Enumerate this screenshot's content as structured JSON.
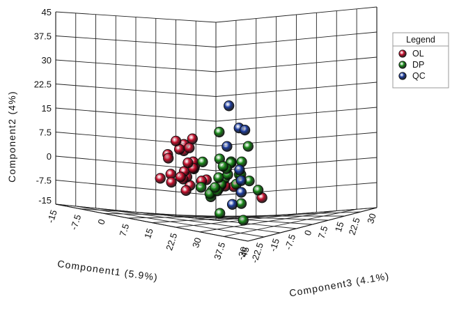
{
  "chart_data": {
    "type": "scatter",
    "projection": "3d",
    "grid": true,
    "legend_placement": "right",
    "legend": {
      "title": "Legend",
      "entries": [
        {
          "name": "OL",
          "color": "#c8102e"
        },
        {
          "name": "DP",
          "color": "#1a8a1a"
        },
        {
          "name": "QC",
          "color": "#1f3fa0"
        }
      ]
    },
    "axes": {
      "component1": {
        "label": "Component1 (5.9%)",
        "ticks": [
          "-15",
          "-7.5",
          "0",
          "7.5",
          "15",
          "22.5",
          "30",
          "37.5",
          "45"
        ],
        "range": [
          -15,
          45
        ]
      },
      "component2": {
        "label": "Component2 (4%)",
        "ticks": [
          "-15",
          "-7.5",
          "0",
          "7.5",
          "15",
          "22.5",
          "30",
          "37.5",
          "45"
        ],
        "range": [
          -15,
          45
        ]
      },
      "component3": {
        "label": "Component3 (4.1%)",
        "ticks": [
          "-30",
          "-22.5",
          "-15",
          "-7.5",
          "0",
          "7.5",
          "15",
          "22.5",
          "30"
        ],
        "range": [
          -30,
          30
        ]
      }
    },
    "series": [
      {
        "name": "OL",
        "color": "#c8102e",
        "points": [
          [
            44,
            -3,
            -22
          ],
          [
            35,
            -1,
            -22
          ],
          [
            33,
            -1,
            -23
          ],
          [
            31,
            -1,
            -22
          ],
          [
            31,
            -2,
            -23
          ],
          [
            29,
            -4,
            -24
          ],
          [
            27,
            0,
            -23
          ],
          [
            24,
            -2,
            -26
          ],
          [
            22,
            -4,
            -25
          ],
          [
            24,
            -1,
            -21
          ],
          [
            21,
            3,
            -20
          ],
          [
            20,
            2,
            -19
          ],
          [
            17,
            -1,
            -18
          ],
          [
            15,
            -2,
            -17
          ],
          [
            19,
            4,
            -18
          ],
          [
            16,
            7,
            -18
          ],
          [
            16,
            9,
            -18
          ],
          [
            17,
            8,
            -17
          ],
          [
            13,
            7,
            -16
          ],
          [
            10,
            5,
            -17
          ],
          [
            11,
            4,
            -18
          ],
          [
            13,
            0,
            -14
          ],
          [
            11,
            -1,
            -17
          ],
          [
            11,
            -2,
            -13
          ],
          [
            8,
            -4,
            -13
          ],
          [
            6,
            -3,
            -15
          ],
          [
            19,
            2,
            -18
          ],
          [
            15,
            3,
            -15
          ],
          [
            15,
            10,
            -20
          ],
          [
            18,
            11,
            -17
          ]
        ]
      },
      {
        "name": "DP",
        "color": "#1a8a1a",
        "points": [
          [
            2,
            -11,
            22
          ],
          [
            4,
            -4,
            23
          ],
          [
            9,
            -7,
            21
          ],
          [
            15,
            7,
            10
          ],
          [
            15,
            12,
            -2
          ],
          [
            23,
            5,
            -12
          ],
          [
            19,
            3,
            -2
          ],
          [
            14,
            2,
            4
          ],
          [
            11,
            -3,
            5
          ],
          [
            9,
            -5,
            6
          ],
          [
            5,
            -7,
            7
          ],
          [
            1,
            -9,
            11
          ],
          [
            -2,
            -8,
            14
          ],
          [
            -3,
            -7,
            18
          ],
          [
            2,
            -5,
            20
          ],
          [
            4,
            -2,
            19
          ],
          [
            2,
            -3,
            13
          ],
          [
            7,
            -2,
            11
          ],
          [
            10,
            0,
            7
          ],
          [
            13,
            1,
            2
          ],
          [
            -6,
            -6,
            15
          ],
          [
            -3,
            -14,
            19
          ],
          [
            -1,
            -16,
            26
          ],
          [
            6,
            -6,
            7
          ],
          [
            9,
            -2,
            14
          ],
          [
            11,
            2,
            12
          ],
          [
            6,
            2,
            2
          ]
        ]
      },
      {
        "name": "QC",
        "color": "#1f3fa0",
        "points": [
          [
            15,
            20,
            2
          ],
          [
            16,
            13,
            5
          ],
          [
            11,
            7,
            6
          ],
          [
            13,
            12,
            11
          ],
          [
            24,
            -6,
            -4
          ],
          [
            20,
            -3,
            1
          ],
          [
            21,
            -10,
            -4
          ],
          [
            17,
            0,
            4
          ]
        ]
      }
    ]
  }
}
